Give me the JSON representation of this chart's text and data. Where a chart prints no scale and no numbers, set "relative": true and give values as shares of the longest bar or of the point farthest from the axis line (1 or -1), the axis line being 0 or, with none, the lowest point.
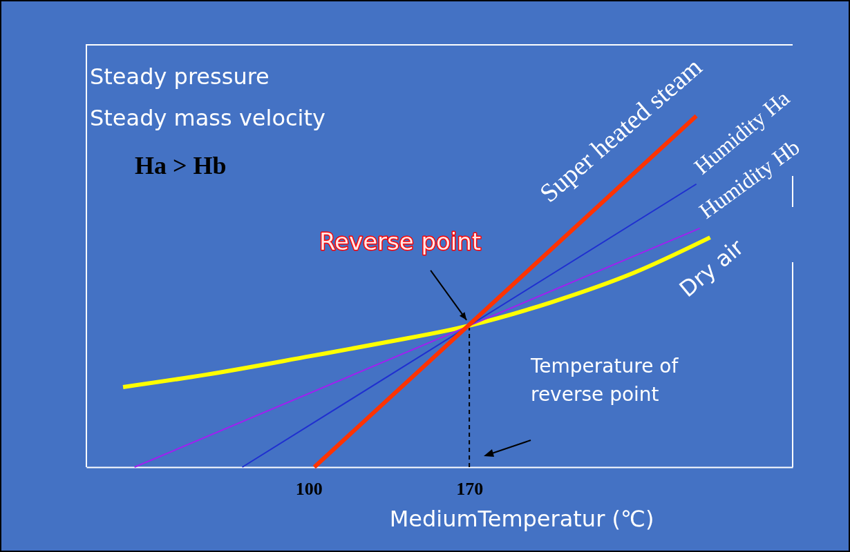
{
  "chart_data": {
    "type": "line",
    "relative": true,
    "xlabel": "MediumTemperatur (℃)",
    "xlim": [
      3,
      311
    ],
    "xticks": [
      100,
      170
    ],
    "grid": false,
    "series": [
      {
        "name": "Dry air",
        "color": "#ffff00",
        "x": [
          19,
          55,
          100.6,
          134,
          170,
          206,
          242,
          275
        ],
        "values": [
          0.228,
          0.263,
          0.316,
          0.356,
          0.403,
          0.47,
          0.554,
          0.654
        ]
      },
      {
        "name": "Humidity Hb",
        "color": "#a020f0",
        "x": [
          24,
          270.5
        ],
        "values": [
          0,
          0.68
        ]
      },
      {
        "name": "Humidity Ha",
        "color": "#1f2fd0",
        "x": [
          71,
          269
        ],
        "values": [
          0,
          0.806
        ]
      },
      {
        "name": "Super heated steam",
        "color": "#ff3300",
        "x": [
          102.4,
          269
        ],
        "values": [
          0,
          1
        ]
      }
    ],
    "ref_lines": [
      {
        "axis": "x",
        "value": 170,
        "color": "#000000",
        "line_style": "dashed"
      }
    ],
    "annotations": [
      "Steady pressure",
      "Steady mass velocity",
      "Ha > Hb",
      {
        "text": "Reverse point",
        "x": 170,
        "y": 0.403
      },
      "Temperature of reverse point"
    ]
  }
}
